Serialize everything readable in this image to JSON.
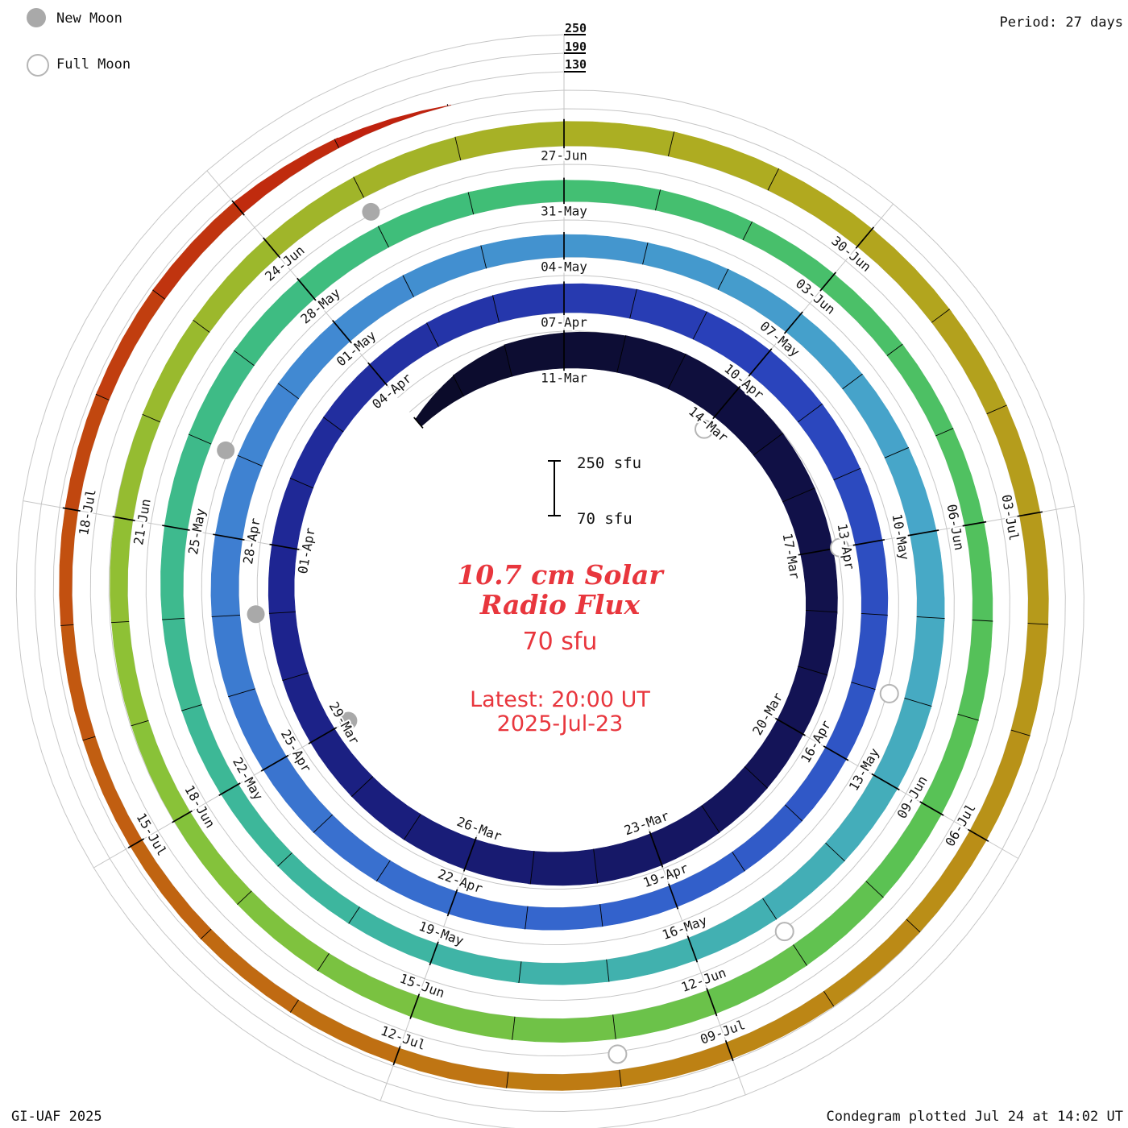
{
  "meta": {
    "period_label": "Period: 27 days",
    "credit": "GI-UAF 2025",
    "plotted_label": "Condegram plotted Jul 24 at 14:02 UT"
  },
  "legend": {
    "new_moon": "New Moon",
    "full_moon": "Full Moon"
  },
  "center": {
    "title_line1": "10.7 cm Solar",
    "title_line2": "Radio Flux",
    "latest_flux_label": "70 sfu",
    "latest_line1": "Latest: 20:00 UT",
    "latest_line2": "2025-Jul-23",
    "scale_top_label": "250 sfu",
    "scale_bottom_label": "70 sfu"
  },
  "radial_axis": {
    "labels": [
      "250",
      "190",
      "130"
    ],
    "values_sfu": [
      250,
      190,
      130
    ]
  },
  "chart_data": {
    "type": "spiral_polar_condegram",
    "title": "10.7 cm Solar Radio Flux",
    "period_days": 27,
    "rotation_direction": "clockwise",
    "start_angle": "top",
    "baseline_sfu": 70,
    "scale_max_sfu": 250,
    "grid_levels_sfu": [
      130,
      190,
      250
    ],
    "start_date": "2025-03-08",
    "label_epoch": "2025-03-11",
    "end_date": "2025-07-23",
    "latest_reading_sfu": 70,
    "latest_reading_time": "20:00 UT 2025-Jul-23",
    "tick_label_step_days": 3,
    "tick_labels": [
      "11-Mar",
      "14-Mar",
      "17-Mar",
      "20-Mar",
      "23-Mar",
      "26-Mar",
      "29-Mar",
      "01-Apr",
      "04-Apr",
      "07-Apr",
      "10-Apr",
      "13-Apr",
      "16-Apr",
      "19-Apr",
      "22-Apr",
      "25-Apr",
      "28-Apr",
      "01-May",
      "04-May",
      "07-May",
      "10-May",
      "13-May",
      "16-May",
      "19-May",
      "22-May",
      "25-May",
      "28-May",
      "31-May",
      "03-Jun",
      "06-Jun",
      "09-Jun",
      "12-Jun",
      "15-Jun",
      "18-Jun",
      "21-Jun",
      "24-Jun",
      "27-Jun",
      "30-Jun",
      "03-Jul",
      "06-Jul",
      "09-Jul",
      "12-Jul",
      "15-Jul",
      "18-Jul"
    ],
    "flux_sfu": [
      100,
      145,
      175,
      185,
      192,
      196,
      193,
      188,
      182,
      176,
      171,
      168,
      166,
      170,
      174,
      178,
      180,
      176,
      172,
      168,
      163,
      159,
      156,
      154,
      152,
      150,
      149,
      151,
      155,
      159,
      163,
      166,
      169,
      170,
      167,
      163,
      158,
      154,
      150,
      147,
      145,
      143,
      142,
      141,
      143,
      146,
      149,
      153,
      156,
      159,
      160,
      158,
      155,
      152,
      150,
      147,
      145,
      143,
      141,
      143,
      146,
      149,
      153,
      156,
      159,
      160,
      158,
      154,
      150,
      145,
      141,
      138,
      135,
      133,
      132,
      134,
      137,
      141,
      145,
      148,
      150,
      148,
      145,
      142,
      139,
      137,
      135,
      133,
      131,
      130,
      132,
      135,
      139,
      143,
      146,
      149,
      150,
      148,
      144,
      140,
      136,
      132,
      129,
      127,
      126,
      128,
      131,
      135,
      139,
      143,
      146,
      149,
      150,
      147,
      144,
      141,
      139,
      137,
      135,
      133,
      131,
      129,
      127,
      125,
      123,
      121,
      119,
      117,
      115,
      113,
      111,
      110,
      112,
      115,
      118,
      116,
      100,
      70
    ],
    "moons": {
      "new": [
        "2025-03-29",
        "2025-04-27",
        "2025-05-26",
        "2025-06-25"
      ],
      "full": [
        "2025-03-14",
        "2025-04-13",
        "2025-05-12",
        "2025-06-11",
        "2025-07-10"
      ]
    },
    "colors": {
      "annotation_red": "#e8363d",
      "grid_gray": "#c6c6c6",
      "moon_gray": "#a9a9a9",
      "tick_black": "#000000",
      "colormap": [
        [
          0.0,
          "#0b0b28"
        ],
        [
          0.095,
          "#14145a"
        ],
        [
          0.168,
          "#1d2490"
        ],
        [
          0.241,
          "#2a42bb"
        ],
        [
          0.314,
          "#3464cd"
        ],
        [
          0.387,
          "#4187d2"
        ],
        [
          0.46,
          "#47a8c8"
        ],
        [
          0.533,
          "#3db6a0"
        ],
        [
          0.606,
          "#3fbe78"
        ],
        [
          0.679,
          "#59c254"
        ],
        [
          0.752,
          "#8cc236"
        ],
        [
          0.825,
          "#b0ab20"
        ],
        [
          0.898,
          "#bd8414"
        ],
        [
          0.956,
          "#c25510"
        ],
        [
          1.0,
          "#bf1d0e"
        ]
      ]
    }
  }
}
